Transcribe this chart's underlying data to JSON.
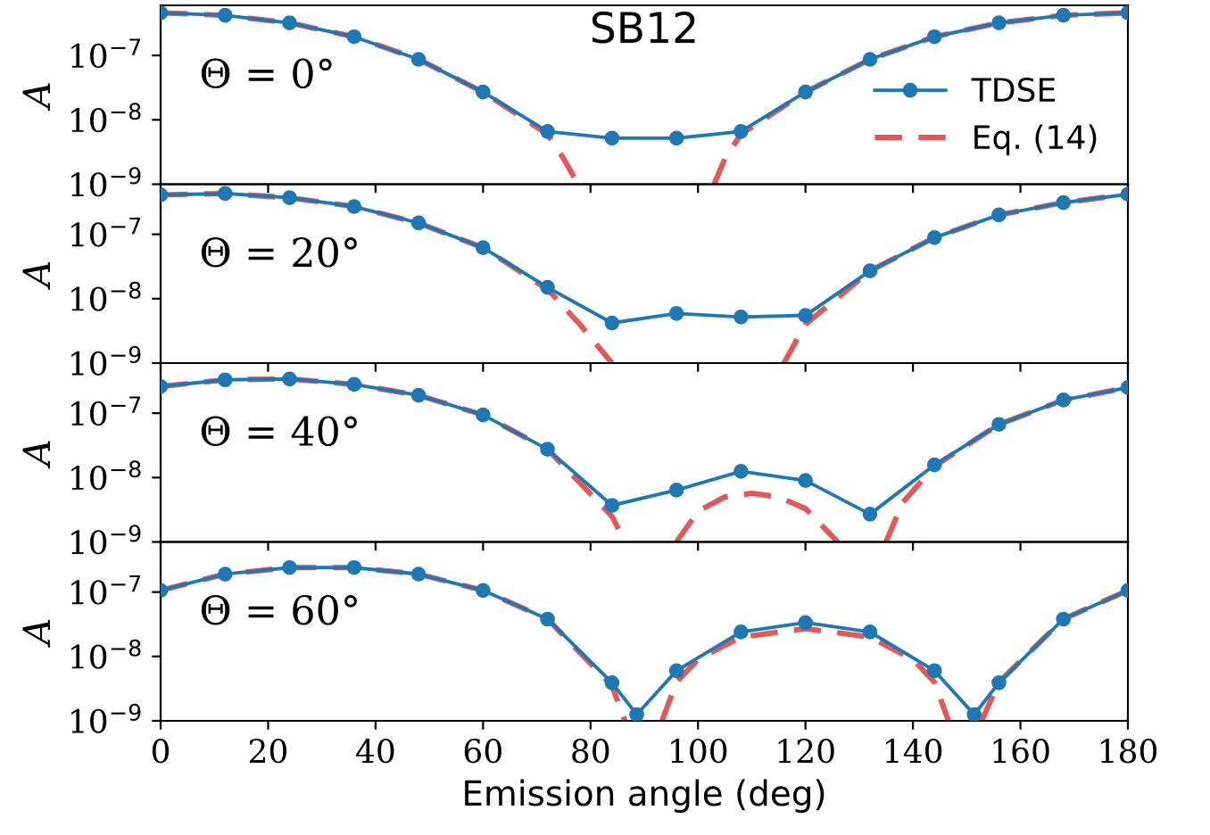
{
  "chart_data": [
    {
      "type": "line",
      "title": "SB12",
      "ylabel": "A",
      "annotations": [
        "Θ = 0°"
      ],
      "log": "y",
      "ylim": [
        1e-09,
        6e-07
      ],
      "yticks": [
        {
          "value": 1e-09,
          "label": "10$^{−9}$"
        },
        {
          "value": 1e-08,
          "label": "10$^{−8}$"
        },
        {
          "value": 1e-07,
          "label": "10$^{−7}$"
        }
      ],
      "xlim": [
        0,
        180
      ],
      "tick_labels": "y",
      "legend": "right",
      "grid": false,
      "series": [
        {
          "name": "TDSE",
          "color": "#1f77b4",
          "marker": "circle",
          "line_style": "solid",
          "x": [
            0,
            12,
            24,
            36,
            48,
            60,
            72,
            84,
            96,
            108,
            120,
            132,
            144,
            156,
            168,
            180
          ],
          "values": [
            4.6e-07,
            4.2e-07,
            3.2e-07,
            1.95e-07,
            8.7e-08,
            2.7e-08,
            6.6e-09,
            5.2e-09,
            5.2e-09,
            6.6e-09,
            2.7e-08,
            8.7e-08,
            1.95e-07,
            3.2e-07,
            4.2e-07,
            4.6e-07
          ]
        },
        {
          "name": "Eq. (14)",
          "color": "#e05a5a",
          "marker": "none",
          "line_style": "dashed",
          "x": [
            0,
            12,
            24,
            36,
            48,
            60,
            72,
            75,
            77.7,
            90,
            103,
            105,
            108,
            120,
            132,
            144,
            156,
            168,
            180
          ],
          "values": [
            4.6e-07,
            4.2e-07,
            3.2e-07,
            1.95e-07,
            8.7e-08,
            2.7e-08,
            6e-09,
            2.5e-09,
            1e-09,
            null,
            1e-09,
            2.5e-09,
            6e-09,
            2.7e-08,
            8.7e-08,
            1.95e-07,
            3.2e-07,
            4.2e-07,
            4.6e-07
          ]
        }
      ]
    },
    {
      "type": "line",
      "ylabel": "A",
      "annotations": [
        "Θ = 20°"
      ],
      "log": "y",
      "ylim": [
        1e-09,
        6e-07
      ],
      "yticks": [
        {
          "value": 1e-09,
          "label": "10$^{−9}$"
        },
        {
          "value": 1e-08,
          "label": "10$^{−8}$"
        },
        {
          "value": 1e-07,
          "label": "10$^{−7}$"
        }
      ],
      "xlim": [
        0,
        180
      ],
      "tick_labels": "y",
      "grid": false,
      "series": [
        {
          "color": "#1f77b4",
          "marker": "circle",
          "line_style": "solid",
          "x": [
            0,
            12,
            24,
            36,
            48,
            60,
            72,
            84,
            96,
            108,
            120,
            132,
            144,
            156,
            168,
            180
          ],
          "values": [
            4.1e-07,
            4.3e-07,
            3.7e-07,
            2.7e-07,
            1.5e-07,
            6.2e-08,
            1.5e-08,
            4.2e-09,
            5.9e-09,
            5.2e-09,
            5.5e-09,
            2.7e-08,
            8.9e-08,
            2e-07,
            3.1e-07,
            4.2e-07
          ]
        },
        {
          "color": "#e05a5a",
          "marker": "none",
          "line_style": "dashed",
          "x": [
            0,
            12,
            24,
            36,
            48,
            60,
            72,
            78,
            84,
            100,
            116,
            120,
            132,
            144,
            156,
            168,
            180
          ],
          "values": [
            4.1e-07,
            4.3e-07,
            3.7e-07,
            2.7e-07,
            1.5e-07,
            6.2e-08,
            1.4e-08,
            4e-09,
            1e-09,
            null,
            1e-09,
            4e-09,
            2.7e-08,
            8.9e-08,
            2e-07,
            3.1e-07,
            4.2e-07
          ]
        }
      ]
    },
    {
      "type": "line",
      "ylabel": "A",
      "annotations": [
        "Θ = 40°"
      ],
      "log": "y",
      "ylim": [
        1e-09,
        6e-07
      ],
      "yticks": [
        {
          "value": 1e-09,
          "label": "10$^{−9}$"
        },
        {
          "value": 1e-08,
          "label": "10$^{−8}$"
        },
        {
          "value": 1e-07,
          "label": "10$^{−7}$"
        }
      ],
      "xlim": [
        0,
        180
      ],
      "tick_labels": "y",
      "grid": false,
      "series": [
        {
          "color": "#1f77b4",
          "marker": "circle",
          "line_style": "solid",
          "x": [
            0,
            12,
            24,
            36,
            48,
            60,
            72,
            84,
            96,
            108,
            120,
            132,
            144,
            156,
            168,
            180
          ],
          "values": [
            2.6e-07,
            3.3e-07,
            3.4e-07,
            2.8e-07,
            1.9e-07,
            9.4e-08,
            2.75e-08,
            3.7e-09,
            6.4e-09,
            1.25e-08,
            9e-09,
            2.7e-09,
            1.57e-08,
            6.7e-08,
            1.6e-07,
            2.5e-07
          ]
        },
        {
          "color": "#e05a5a",
          "marker": "none",
          "line_style": "dashed",
          "x": [
            0,
            12,
            24,
            36,
            48,
            60,
            72,
            84,
            86.4,
            91,
            96,
            100,
            105,
            110,
            115,
            120,
            126,
            130,
            135,
            138,
            144,
            156,
            168,
            180
          ],
          "values": [
            2.6e-07,
            3.3e-07,
            3.4e-07,
            2.8e-07,
            1.9e-07,
            9.4e-08,
            2.75e-08,
            2.5e-09,
            1e-09,
            null,
            1e-09,
            3e-09,
            5e-09,
            5.7e-09,
            5e-09,
            3.3e-09,
            1e-09,
            null,
            1e-09,
            4e-09,
            1.5e-08,
            6.7e-08,
            1.6e-07,
            2.5e-07
          ]
        }
      ]
    },
    {
      "type": "line",
      "ylabel": "A",
      "xlabel": "Emission angle (deg)",
      "annotations": [
        "Θ = 60°"
      ],
      "log": "y",
      "ylim": [
        1e-09,
        6e-07
      ],
      "yticks": [
        {
          "value": 1e-09,
          "label": "10$^{−9}$"
        },
        {
          "value": 1e-08,
          "label": "10$^{−8}$"
        },
        {
          "value": 1e-07,
          "label": "10$^{−7}$"
        }
      ],
      "xlim": [
        0,
        180
      ],
      "xticks": [
        0,
        20,
        40,
        60,
        80,
        100,
        120,
        140,
        160,
        180
      ],
      "grid": false,
      "series": [
        {
          "color": "#1f77b4",
          "marker": "circle",
          "line_style": "solid",
          "x": [
            0,
            12,
            24,
            36,
            48,
            60,
            72,
            84,
            88.6,
            96,
            108,
            120,
            132,
            144,
            151.4,
            156,
            168,
            180
          ],
          "values": [
            1.06e-07,
            1.9e-07,
            2.4e-07,
            2.4e-07,
            1.9e-07,
            1.06e-07,
            3.8e-08,
            3.9e-09,
            1.25e-09,
            6e-09,
            2.4e-08,
            3.35e-08,
            2.4e-08,
            6e-09,
            1.25e-09,
            3.9e-09,
            3.8e-08,
            1.06e-07
          ]
        },
        {
          "color": "#e05a5a",
          "marker": "none",
          "line_style": "dashed",
          "x": [
            0,
            12,
            24,
            36,
            48,
            60,
            72,
            84,
            86.4,
            90,
            93.3,
            96,
            100,
            108,
            120,
            132,
            140,
            144,
            146.6,
            150,
            152.8,
            156,
            168,
            180
          ],
          "values": [
            1.06e-07,
            1.9e-07,
            2.4e-07,
            2.4e-07,
            1.9e-07,
            1.06e-07,
            3.8e-08,
            3.5e-09,
            1e-09,
            null,
            1e-09,
            4e-09,
            9e-09,
            2e-08,
            2.7e-08,
            2e-08,
            9e-09,
            4e-09,
            1e-09,
            null,
            1e-09,
            4e-09,
            3.8e-08,
            1.06e-07
          ]
        }
      ]
    }
  ]
}
